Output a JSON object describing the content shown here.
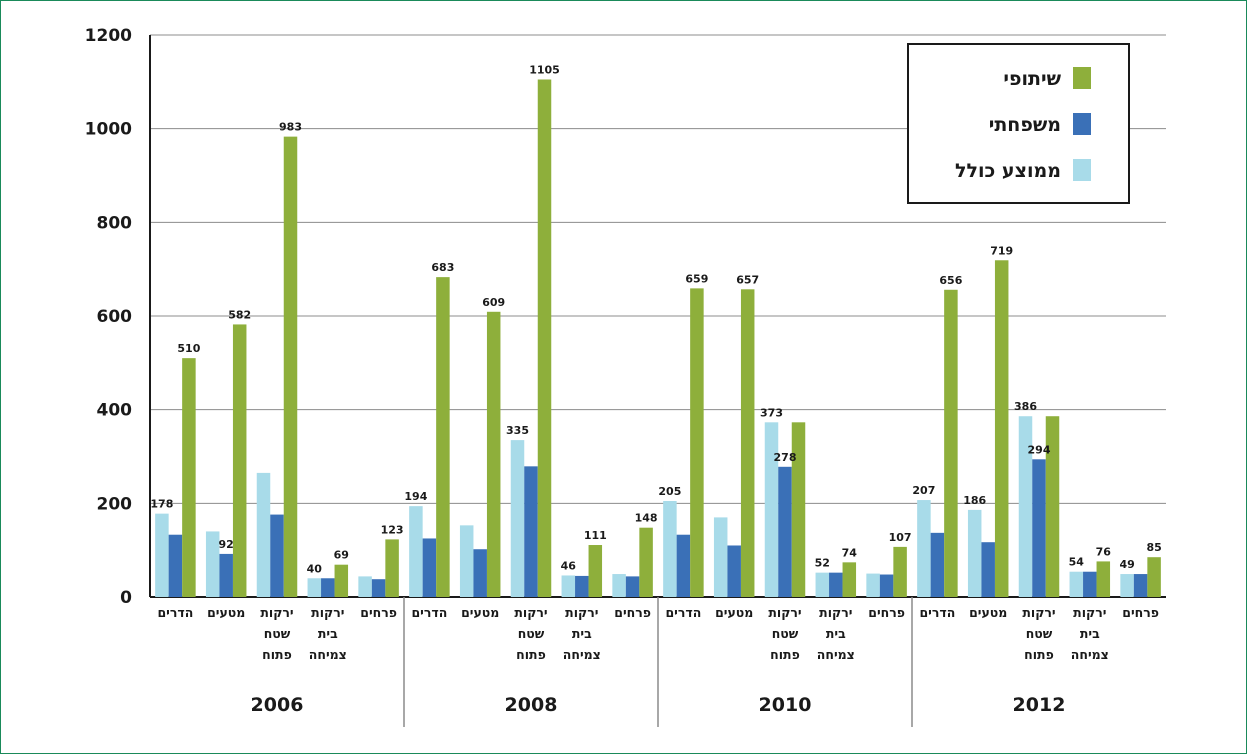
{
  "chart_data": {
    "type": "bar",
    "title": "",
    "xlabel": "",
    "ylabel": "",
    "ylim": [
      0,
      1200
    ],
    "yticks": [
      0,
      200,
      400,
      600,
      800,
      1000,
      1200
    ],
    "grid": true,
    "legend_position": "top-right",
    "groups": [
      "2006",
      "2008",
      "2010",
      "2012"
    ],
    "categories": [
      [
        "הדרים"
      ],
      [
        "מטעים"
      ],
      [
        "ירקות",
        "שטח",
        "פתוח"
      ],
      [
        "ירקות",
        "בית",
        "צמיחה"
      ],
      [
        "פרחים"
      ]
    ],
    "series": [
      {
        "name": "ממוצע כולל",
        "color": "#a8dbe9",
        "values": [
          [
            178,
            140,
            265,
            40,
            44
          ],
          [
            194,
            153,
            335,
            46,
            49
          ],
          [
            205,
            170,
            373,
            52,
            50
          ],
          [
            207,
            186,
            386,
            54,
            49
          ]
        ]
      },
      {
        "name": "משפחתי",
        "color": "#3a70b7",
        "values": [
          [
            133,
            92,
            176,
            40,
            38
          ],
          [
            125,
            102,
            279,
            45,
            44
          ],
          [
            133,
            110,
            278,
            52,
            48
          ],
          [
            137,
            117,
            294,
            54,
            49
          ]
        ]
      },
      {
        "name": "שיתופי",
        "color": "#8eaf3b",
        "values": [
          [
            510,
            582,
            983,
            69,
            123
          ],
          [
            683,
            609,
            1105,
            111,
            148
          ],
          [
            659,
            657,
            373,
            74,
            107
          ],
          [
            656,
            719,
            386,
            76,
            85
          ]
        ]
      }
    ],
    "data_labels": [
      [
        [
          {
            "s": 0,
            "v": 178
          },
          {
            "s": 2,
            "v": 510
          }
        ],
        [
          {
            "s": 1,
            "v": 92
          },
          {
            "s": 2,
            "v": 582
          }
        ],
        [
          {
            "s": 2,
            "v": 983
          }
        ],
        [
          {
            "s": 0,
            "v": 40
          },
          {
            "s": 2,
            "v": 69
          }
        ],
        [
          {
            "s": 2,
            "v": 123
          }
        ]
      ],
      [
        [
          {
            "s": 0,
            "v": 194
          },
          {
            "s": 2,
            "v": 683
          }
        ],
        [
          {
            "s": 2,
            "v": 609
          }
        ],
        [
          {
            "s": 0,
            "v": 335
          },
          {
            "s": 2,
            "v": 1105
          }
        ],
        [
          {
            "s": 0,
            "v": 46
          },
          {
            "s": 2,
            "v": 111
          }
        ],
        [
          {
            "s": 2,
            "v": 148
          }
        ]
      ],
      [
        [
          {
            "s": 0,
            "v": 205
          },
          {
            "s": 2,
            "v": 659
          }
        ],
        [
          {
            "s": 2,
            "v": 657
          }
        ],
        [
          {
            "s": 0,
            "v": 373
          },
          {
            "s": 1,
            "v": 278
          }
        ],
        [
          {
            "s": 0,
            "v": 52
          },
          {
            "s": 2,
            "v": 74
          }
        ],
        [
          {
            "s": 2,
            "v": 107
          }
        ]
      ],
      [
        [
          {
            "s": 0,
            "v": 207
          },
          {
            "s": 2,
            "v": 656
          }
        ],
        [
          {
            "s": 0,
            "v": 186
          },
          {
            "s": 2,
            "v": 719
          }
        ],
        [
          {
            "s": 0,
            "v": 386
          },
          {
            "s": 1,
            "v": 294
          }
        ],
        [
          {
            "s": 0,
            "v": 54
          },
          {
            "s": 2,
            "v": 76
          }
        ],
        [
          {
            "s": 0,
            "v": 49
          },
          {
            "s": 2,
            "v": 85
          }
        ]
      ]
    ]
  }
}
